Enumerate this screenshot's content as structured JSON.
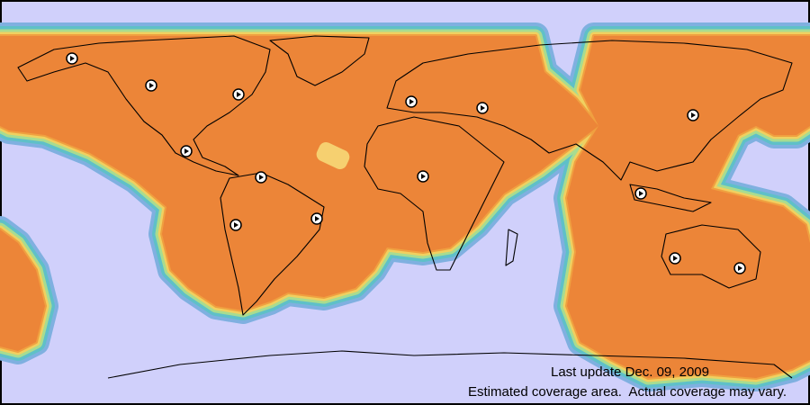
{
  "footer": {
    "last_update": "Last update Dec. 09, 2009",
    "disclaimer": "Estimated coverage area.  Actual coverage may vary."
  }
}
